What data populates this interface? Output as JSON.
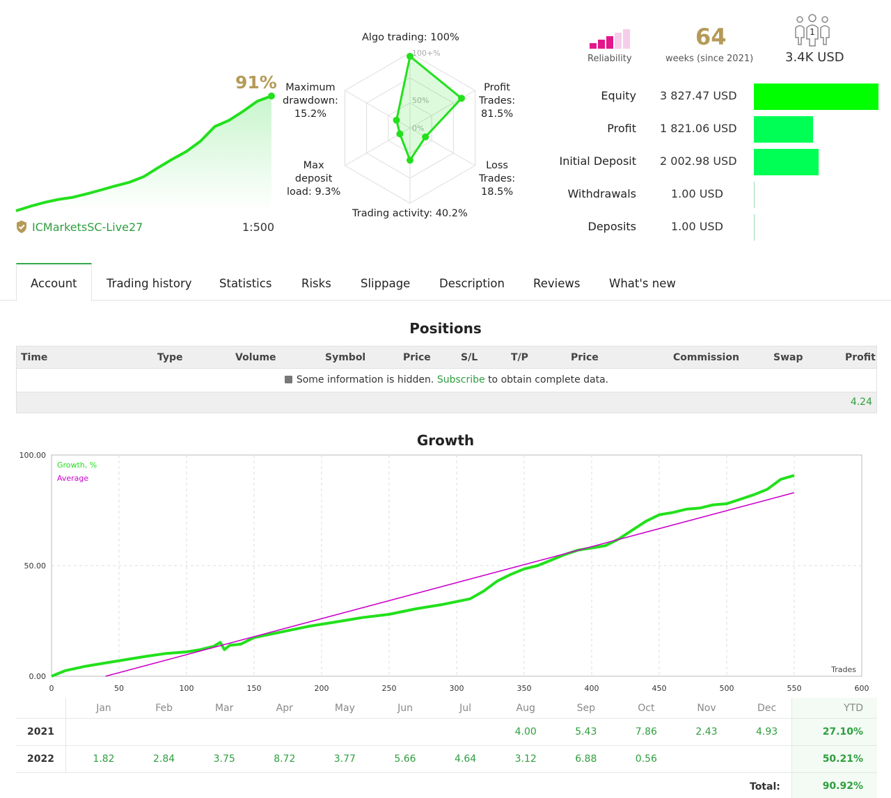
{
  "summary": {
    "growth_percent": "91%",
    "server": "ICMarketsSC-Live27",
    "leverage": "1:500",
    "mini_chart_points": [
      0.0,
      3.5,
      6.6,
      9.0,
      10.7,
      13.4,
      16.5,
      19.7,
      22.6,
      27.0,
      34.0,
      40.7,
      46.9,
      55.1,
      66.6,
      71.5,
      78.7,
      86.7,
      90.8
    ]
  },
  "radar": {
    "axes": [
      {
        "label": "Algo trading: 100%",
        "value": 100
      },
      {
        "label": "Profit Trades: 81.5%",
        "value": 81.5
      },
      {
        "label": "Loss Trades: 18.5%",
        "value": 18.5
      },
      {
        "label": "Trading activity: 40.2%",
        "value": 40.2
      },
      {
        "label": "Max deposit load: 9.3%",
        "value": 9.3
      },
      {
        "label": "Maximum drawdown: 15.2%",
        "value": 15.2
      }
    ],
    "ring_labels": [
      "100+%",
      "50%",
      "0%"
    ],
    "label_lines": {
      "algo": [
        "Algo trading: 100%"
      ],
      "profit": [
        "Profit",
        "Trades:",
        "81.5%"
      ],
      "loss": [
        "Loss",
        "Trades:",
        "18.5%"
      ],
      "activity": [
        "Trading activity: 40.2%"
      ],
      "load": [
        "Max",
        "deposit",
        "load: 9.3%"
      ],
      "drawdown": [
        "Maximum",
        "drawdown:",
        "15.2%"
      ]
    }
  },
  "reliability": {
    "label": "Reliability",
    "filled_bars": 3,
    "total_bars": 5
  },
  "weeks": {
    "value": "64",
    "label": "weeks (since 2021)"
  },
  "subscribers": {
    "count": "1",
    "funds": "3.4K USD"
  },
  "stats": [
    {
      "name": "Equity",
      "value": "3 827.47 USD",
      "ratio": 1.0
    },
    {
      "name": "Profit",
      "value": "1 821.06 USD",
      "ratio": 0.476
    },
    {
      "name": "Initial Deposit",
      "value": "2 002.98 USD",
      "ratio": 0.523
    },
    {
      "name": "Withdrawals",
      "value": "1.00 USD",
      "ratio": 0.0003
    },
    {
      "name": "Deposits",
      "value": "1.00 USD",
      "ratio": 0.0003
    }
  ],
  "tabs": [
    "Account",
    "Trading history",
    "Statistics",
    "Risks",
    "Slippage",
    "Description",
    "Reviews",
    "What's new"
  ],
  "positions": {
    "title": "Positions",
    "columns": [
      "Time",
      "Type",
      "Volume",
      "Symbol",
      "Price",
      "S/L",
      "T/P",
      "Price",
      "Commission",
      "Swap",
      "Profit"
    ],
    "note_before": "Some information is hidden.",
    "note_link": "Subscribe",
    "note_after": "to obtain complete data.",
    "total_profit": "4.24"
  },
  "growth": {
    "title": "Growth",
    "legend_growth": "Growth, %",
    "legend_average": "Average",
    "x_axis_label": "Trades",
    "y_ticks": [
      "100.00",
      "50.00",
      "0.00"
    ],
    "x_ticks": [
      "0",
      "50",
      "100",
      "150",
      "200",
      "250",
      "300",
      "350",
      "400",
      "450",
      "500",
      "550",
      "600"
    ],
    "colors": {
      "growth": "#22e01c",
      "average": "#cc00cc"
    }
  },
  "chart_data": {
    "type": "line",
    "xlabel": "Trades",
    "ylabel": "",
    "xlim": [
      0,
      600
    ],
    "ylim": [
      0,
      100
    ],
    "series": [
      {
        "name": "Growth, %",
        "x": [
          0,
          10,
          25,
          40,
          55,
          70,
          85,
          100,
          110,
          120,
          125,
          128,
          132,
          140,
          150,
          170,
          190,
          210,
          230,
          250,
          270,
          290,
          310,
          320,
          330,
          340,
          350,
          360,
          370,
          380,
          390,
          400,
          410,
          420,
          430,
          440,
          450,
          460,
          470,
          480,
          490,
          500,
          510,
          520,
          530,
          540,
          550
        ],
        "y": [
          0.0,
          2.5,
          4.5,
          6.0,
          7.5,
          9.0,
          10.3,
          11.0,
          12.0,
          13.5,
          15.3,
          12.0,
          14.0,
          14.5,
          17.5,
          20.0,
          22.5,
          24.5,
          26.5,
          28.0,
          30.5,
          32.5,
          35.0,
          38.5,
          43.0,
          46.0,
          48.5,
          50.0,
          52.5,
          55.0,
          57.0,
          58.0,
          59.0,
          62.0,
          66.0,
          70.0,
          73.0,
          74.0,
          75.5,
          76.0,
          77.5,
          78.0,
          80.0,
          82.0,
          84.5,
          89.0,
          90.8
        ]
      },
      {
        "name": "Average",
        "x": [
          40,
          550
        ],
        "y": [
          0.0,
          83.0
        ]
      }
    ]
  },
  "monthly": {
    "months": [
      "Jan",
      "Feb",
      "Mar",
      "Apr",
      "May",
      "Jun",
      "Jul",
      "Aug",
      "Sep",
      "Oct",
      "Nov",
      "Dec"
    ],
    "ytd_label": "YTD",
    "rows": [
      {
        "year": "2021",
        "values": [
          "",
          "",
          "",
          "",
          "",
          "",
          "",
          "4.00",
          "5.43",
          "7.86",
          "2.43",
          "4.93"
        ],
        "ytd": "27.10%"
      },
      {
        "year": "2022",
        "values": [
          "1.82",
          "2.84",
          "3.75",
          "8.72",
          "3.77",
          "5.66",
          "4.64",
          "3.12",
          "6.88",
          "0.56",
          "",
          ""
        ],
        "ytd": "50.21%"
      }
    ],
    "total_label": "Total:",
    "total_value": "90.92%"
  }
}
